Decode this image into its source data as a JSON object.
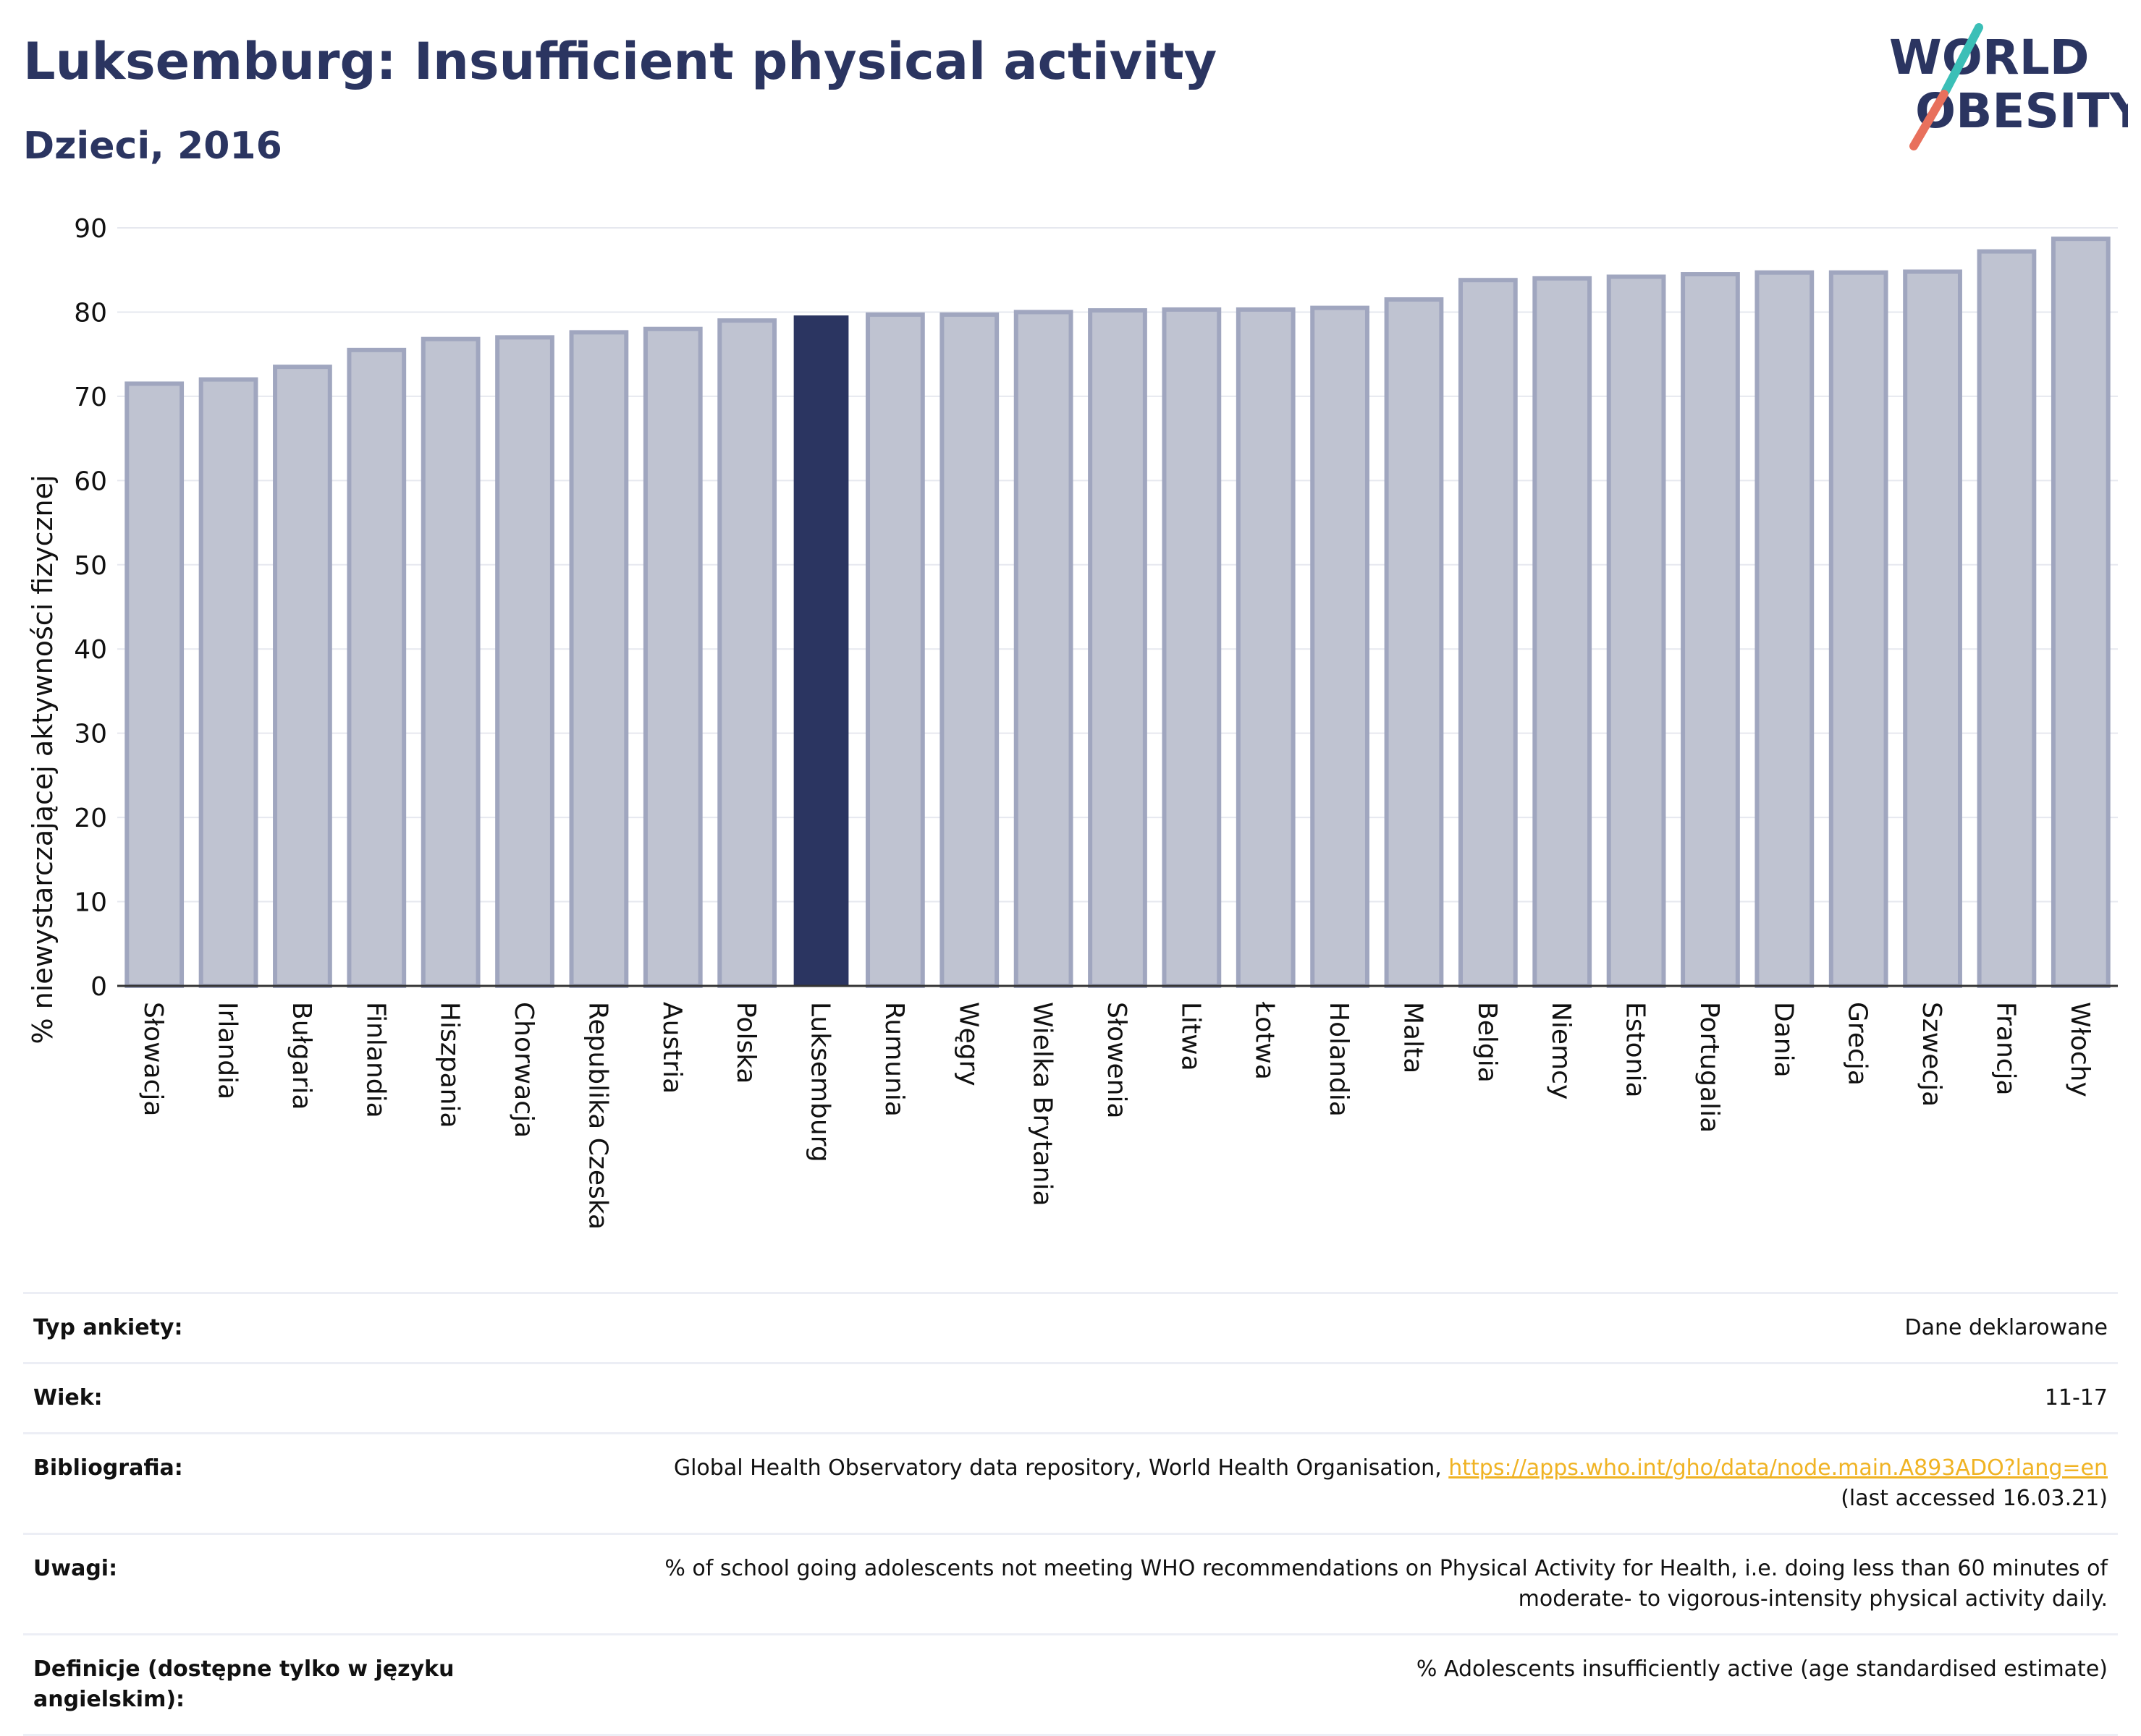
{
  "header": {
    "title": "Luksemburg: Insufficient physical activity",
    "subtitle": "Dzieci, 2016"
  },
  "logo": {
    "line1": "WORLD",
    "line2": "OBESITY",
    "accent_color_teal": "#3bbfb7",
    "accent_color_coral": "#e8705c"
  },
  "chart_data": {
    "type": "bar",
    "ylabel": "% niewystarczającej aktywności fizycznej",
    "xlabel": "",
    "ylim": [
      0,
      90
    ],
    "yticks": [
      0,
      10,
      20,
      30,
      40,
      50,
      60,
      70,
      80,
      90
    ],
    "grid": true,
    "highlight_category": "Luksemburg",
    "colors": {
      "bar": "#bfc3d1",
      "bar_border": "#a0a6bf",
      "highlight": "#2b3561"
    },
    "categories": [
      "Słowacja",
      "Irlandia",
      "Bułgaria",
      "Finlandia",
      "Hiszpania",
      "Chorwacja",
      "Republika Czeska",
      "Austria",
      "Polska",
      "Luksemburg",
      "Rumunia",
      "Węgry",
      "Wielka Brytania",
      "Słowenia",
      "Litwa",
      "Łotwa",
      "Holandia",
      "Malta",
      "Belgia",
      "Niemcy",
      "Estonia",
      "Portugalia",
      "Dania",
      "Grecja",
      "Szwecja",
      "Francja",
      "Włochy"
    ],
    "values": [
      71.5,
      72.0,
      73.5,
      75.5,
      76.8,
      77.0,
      77.6,
      78.0,
      79.0,
      79.6,
      79.7,
      79.7,
      80.0,
      80.2,
      80.3,
      80.3,
      80.5,
      81.5,
      83.8,
      84.0,
      84.2,
      84.5,
      84.7,
      84.7,
      84.8,
      87.2,
      88.7
    ]
  },
  "info": [
    {
      "key": "Typ ankiety:",
      "value": "Dane deklarowane"
    },
    {
      "key": "Wiek:",
      "value": "11-17"
    },
    {
      "key": "Bibliografia:",
      "value_prefix": "Global Health Observatory data repository, World Health Organisation, ",
      "link_text": "https://apps.who.int/gho/data/node.main.A893ADO?lang=en",
      "value_suffix": "(last accessed 16.03.21)"
    },
    {
      "key": "Uwagi:",
      "value_line1": "% of school going adolescents not meeting WHO recommendations on Physical Activity for Health, i.e. doing less than 60 minutes of",
      "value_line2": "moderate- to vigorous-intensity physical activity daily."
    },
    {
      "key": "Definicje (dostępne tylko w języku angielskim):",
      "value": "% Adolescents insufficiently active (age standardised estimate)"
    }
  ]
}
